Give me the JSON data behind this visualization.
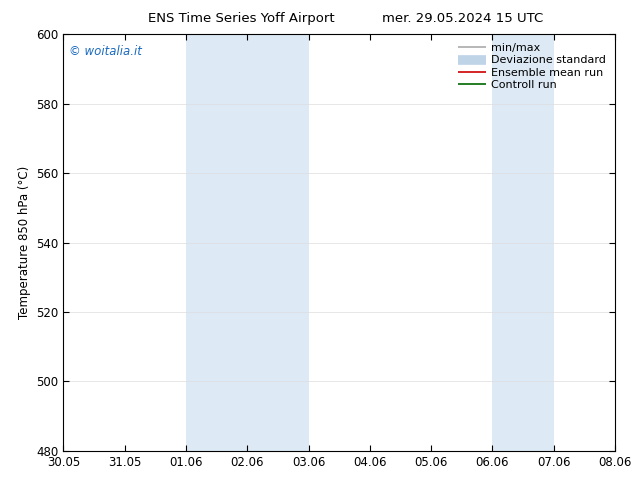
{
  "title_left": "ENS Time Series Yoff Airport",
  "title_right": "mer. 29.05.2024 15 UTC",
  "ylabel": "Temperature 850 hPa (°C)",
  "ylim": [
    480,
    600
  ],
  "yticks": [
    480,
    500,
    520,
    540,
    560,
    580,
    600
  ],
  "xlim_start": 0,
  "xlim_end": 9,
  "xtick_labels": [
    "30.05",
    "31.05",
    "01.06",
    "02.06",
    "03.06",
    "04.06",
    "05.06",
    "06.06",
    "07.06",
    "08.06"
  ],
  "xtick_positions": [
    0,
    1,
    2,
    3,
    4,
    5,
    6,
    7,
    8,
    9
  ],
  "shaded_regions": [
    {
      "x_start": 2,
      "x_end": 4,
      "color": "#ddeaf5"
    },
    {
      "x_start": 7,
      "x_end": 8,
      "color": "#ddeaf5"
    }
  ],
  "watermark_text": "© woitalia.it",
  "watermark_color": "#1a6abf",
  "legend_items": [
    {
      "label": "min/max",
      "color": "#aaaaaa",
      "linestyle": "-",
      "linewidth": 1.2
    },
    {
      "label": "Deviazione standard",
      "color": "#c0d4e8",
      "linestyle": "-",
      "linewidth": 7
    },
    {
      "label": "Ensemble mean run",
      "color": "#cc0000",
      "linestyle": "-",
      "linewidth": 1.2
    },
    {
      "label": "Controll run",
      "color": "#006600",
      "linestyle": "-",
      "linewidth": 1.2
    }
  ],
  "background_color": "#ffffff",
  "spine_color": "#000000",
  "tick_color": "#000000",
  "font_size": 8.5,
  "title_fontsize": 9.5
}
